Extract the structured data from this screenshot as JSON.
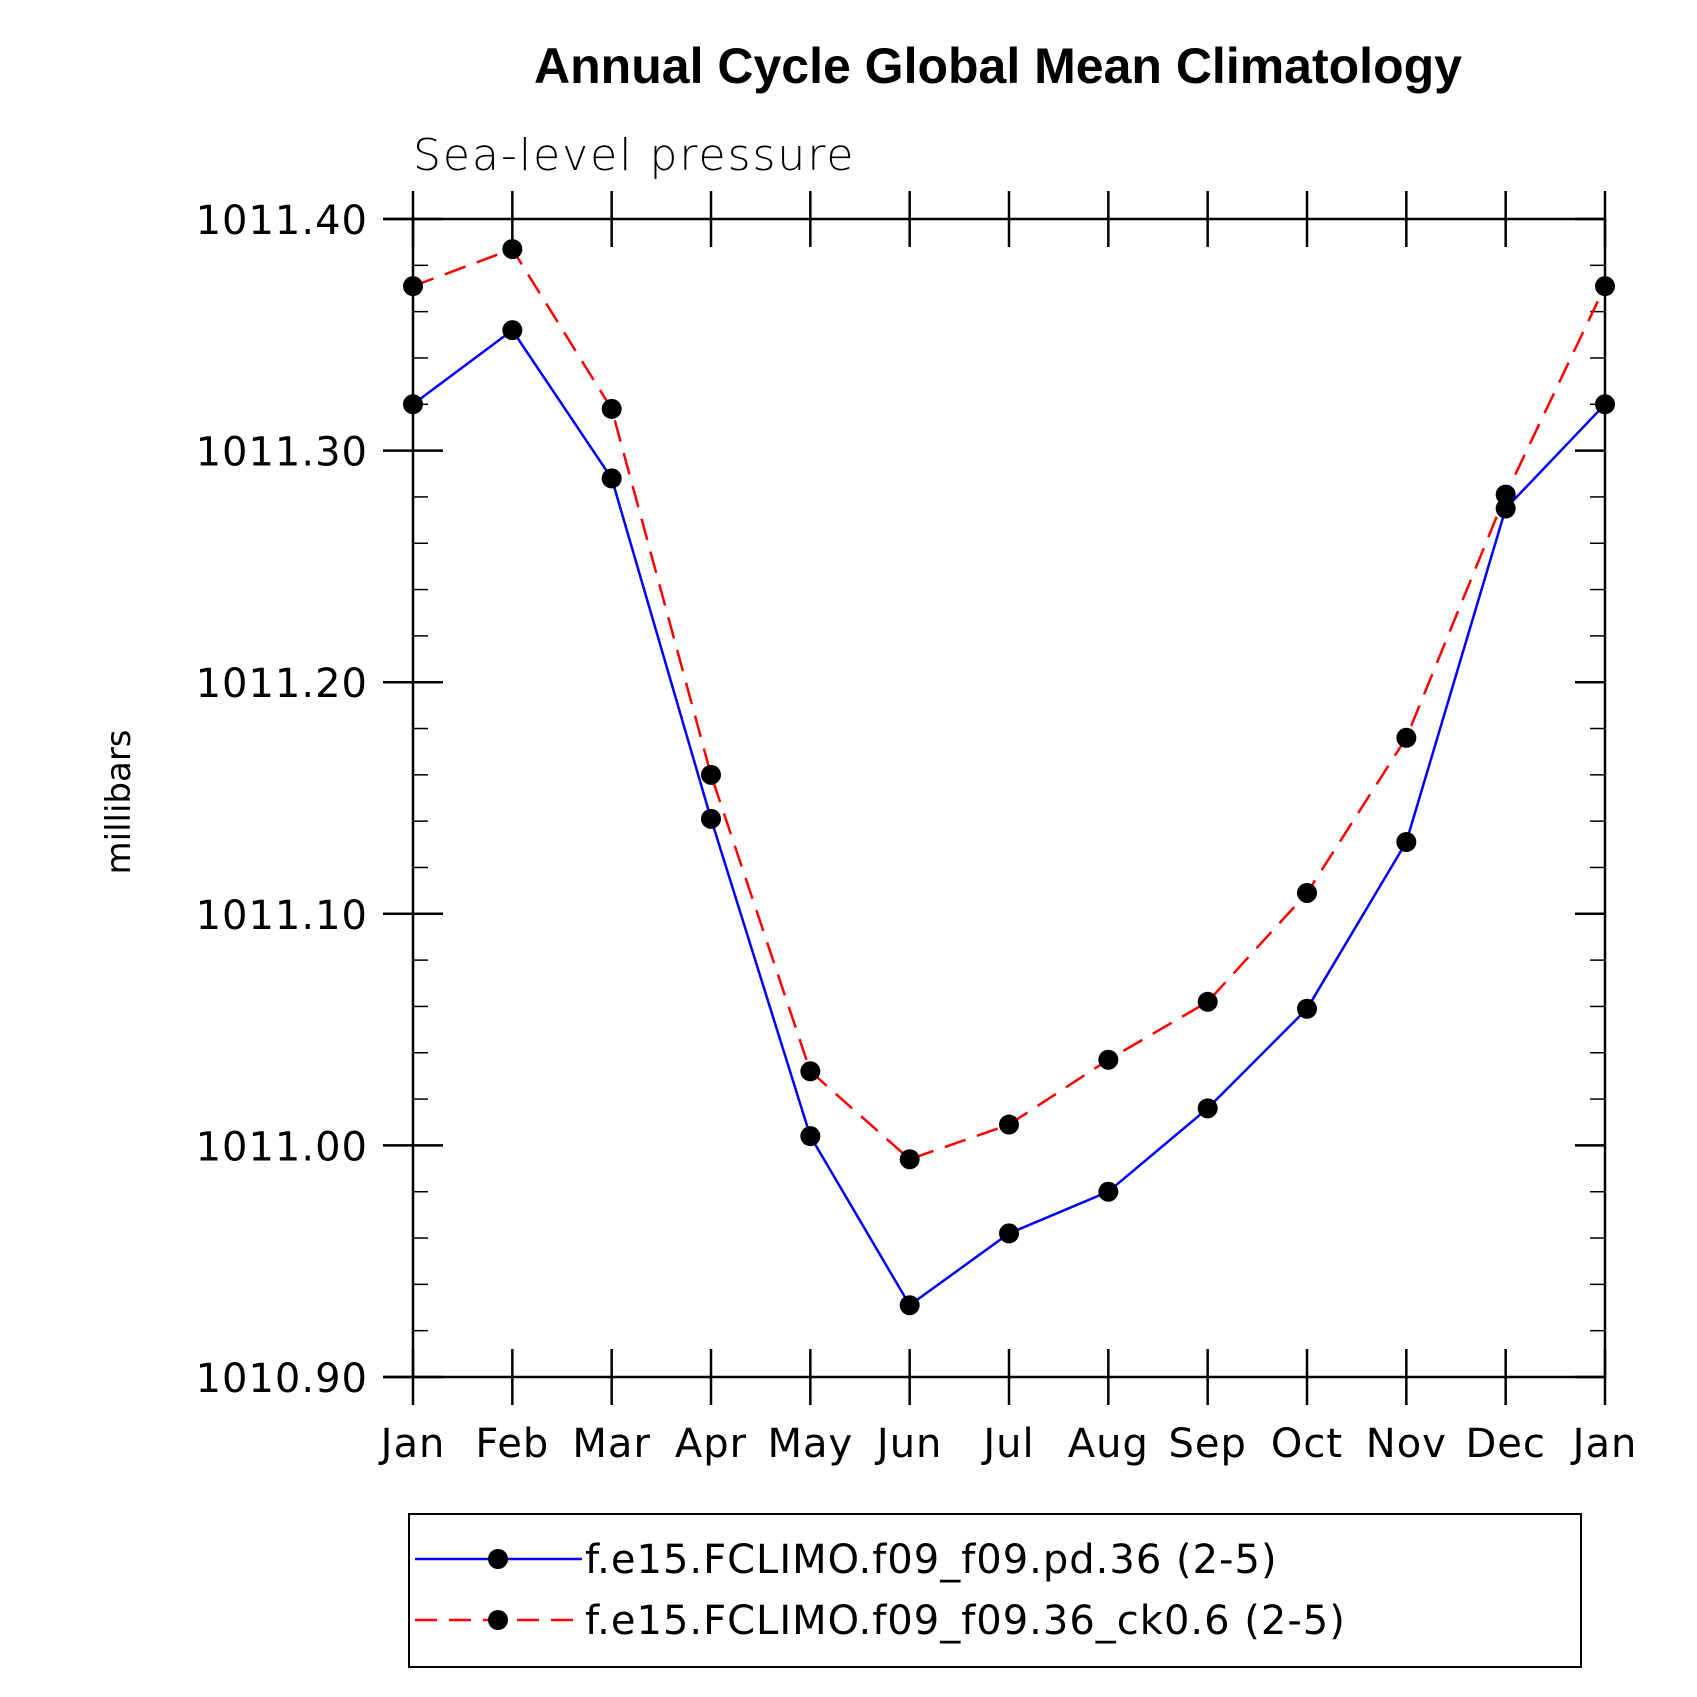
{
  "chart_data": {
    "type": "line",
    "title": "Annual Cycle Global Mean Climatology",
    "subtitle": "Sea-level pressure",
    "ylabel": "millibars",
    "xlabel": "",
    "categories": [
      "Jan",
      "Feb",
      "Mar",
      "Apr",
      "May",
      "Jun",
      "Jul",
      "Aug",
      "Sep",
      "Oct",
      "Nov",
      "Dec",
      "Jan"
    ],
    "ylim": [
      1010.9,
      1011.4
    ],
    "yticks": [
      "1011.40",
      "1011.30",
      "1011.20",
      "1011.10",
      "1011.00",
      "1010.90"
    ],
    "ytick_values": [
      1011.4,
      1011.3,
      1011.2,
      1011.1,
      1011.0,
      1010.9
    ],
    "grid": false,
    "legend_position": "bottom",
    "series": [
      {
        "name": "f.e15.FCLIMO.f09_f09.pd.36 (2-5)",
        "color": "#0000ff",
        "dash": "solid",
        "marker": "filled-circle",
        "values": [
          1011.32,
          1011.352,
          1011.288,
          1011.141,
          1011.004,
          1010.931,
          1010.962,
          1010.98,
          1011.016,
          1011.059,
          1011.131,
          1011.275,
          1011.32
        ]
      },
      {
        "name": "f.e15.FCLIMO.f09_f09.36_ck0.6 (2-5)",
        "color": "#ff0000",
        "dash": "dashed",
        "marker": "filled-circle",
        "values": [
          1011.371,
          1011.387,
          1011.318,
          1011.16,
          1011.032,
          1010.994,
          1011.009,
          1011.037,
          1011.062,
          1011.109,
          1011.176,
          1011.281,
          1011.371
        ]
      }
    ]
  }
}
